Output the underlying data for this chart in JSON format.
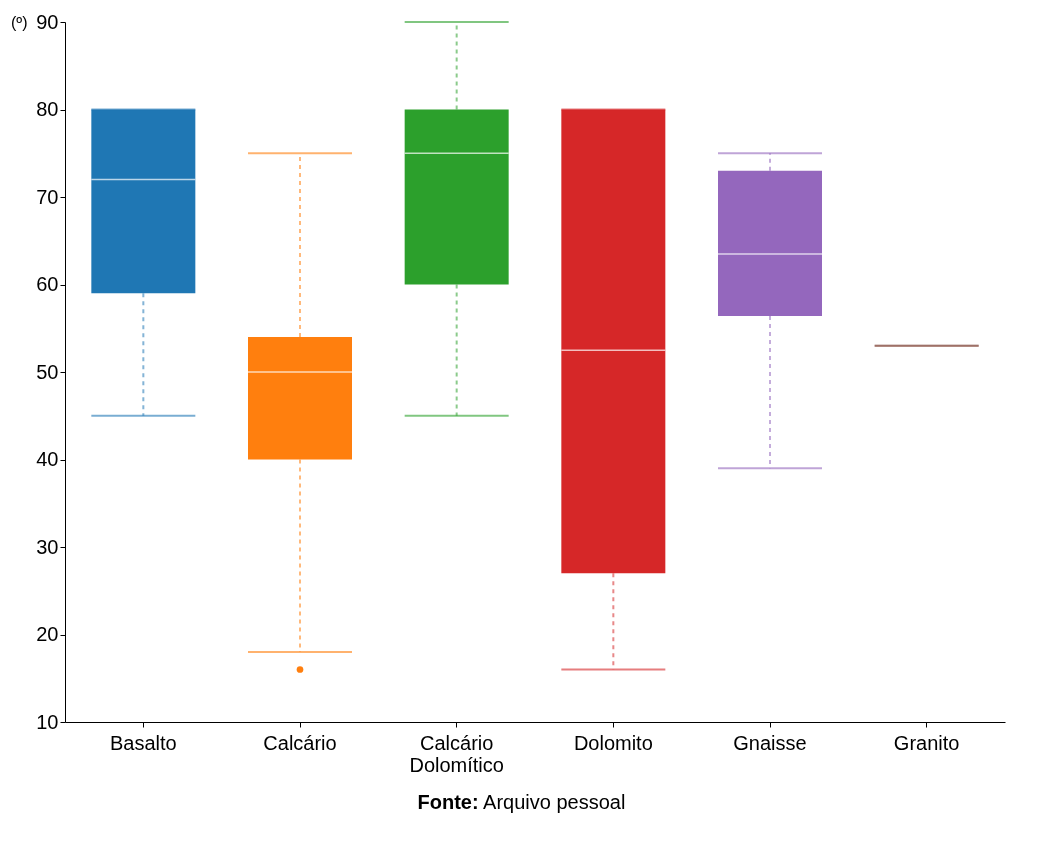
{
  "chart_data": {
    "type": "box",
    "ylabel": "(º)",
    "categories": [
      "Basalto",
      "Calcário",
      "Calcário Dolomítico",
      "Dolomito",
      "Gnaisse",
      "Granito"
    ],
    "colors": [
      "#1f77b4",
      "#ff7f0e",
      "#2ca02c",
      "#d62728",
      "#9467bd",
      "#8c564b"
    ],
    "boxes": [
      {
        "low": 45,
        "q1": 59,
        "median": 72,
        "q3": 80,
        "high": 80
      },
      {
        "low": 18,
        "q1": 40,
        "median": 50,
        "q3": 54,
        "high": 75,
        "outliers": [
          16
        ]
      },
      {
        "low": 45,
        "q1": 60,
        "median": 75,
        "q3": 80,
        "high": 90
      },
      {
        "low": 16,
        "q1": 27,
        "median": 52.5,
        "q3": 80,
        "high": 80
      },
      {
        "low": 39,
        "q1": 56.4,
        "median": 63.5,
        "q3": 73,
        "high": 75
      },
      {
        "low": 53,
        "q1": 53,
        "median": 53,
        "q3": 53,
        "high": 53
      }
    ],
    "ylim": [
      10,
      90
    ],
    "yticks": [
      10,
      20,
      30,
      40,
      50,
      60,
      70,
      80,
      90
    ],
    "grid": false,
    "annotations": [
      "Fonte: Arquivo pessoal"
    ]
  }
}
